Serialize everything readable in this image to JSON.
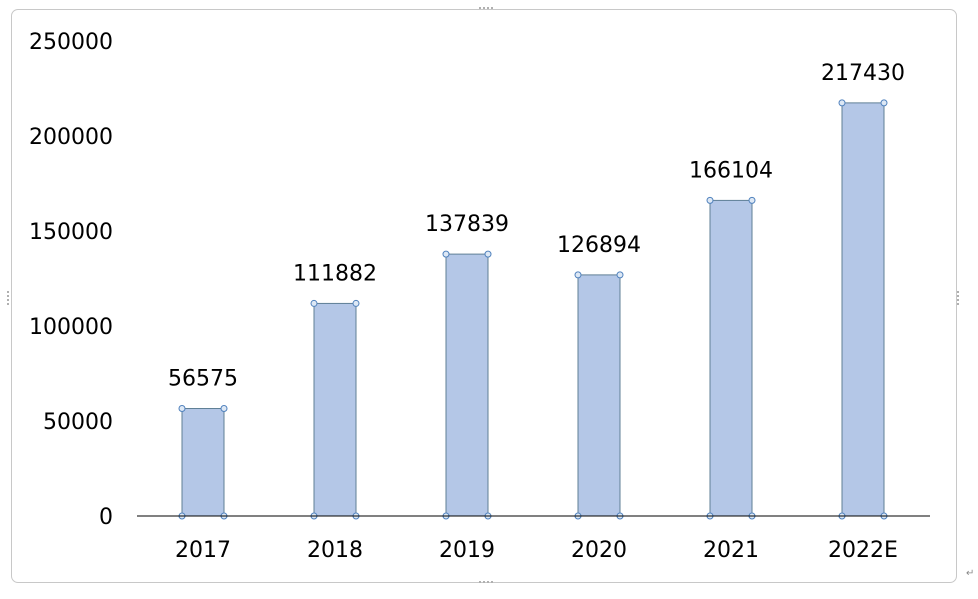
{
  "chart_data": {
    "type": "bar",
    "categories": [
      "2017",
      "2018",
      "2019",
      "2020",
      "2021",
      "2022E"
    ],
    "values": [
      56575,
      111882,
      137839,
      126894,
      166104,
      217430
    ],
    "data_labels": [
      "56575",
      "111882",
      "137839",
      "126894",
      "166104",
      "217430"
    ],
    "yticks": [
      0,
      50000,
      100000,
      150000,
      200000,
      250000
    ],
    "ylim": [
      0,
      250000
    ],
    "title": "",
    "xlabel": "",
    "ylabel": "",
    "grid": false,
    "legend": "none",
    "colors": {
      "bar_fill": "#b4c7e7",
      "bar_stroke": "#5f7f96",
      "handle_fill": "#dde8f5",
      "handle_stroke": "#4f81bd",
      "axis": "#000000",
      "text": "#000000"
    }
  }
}
